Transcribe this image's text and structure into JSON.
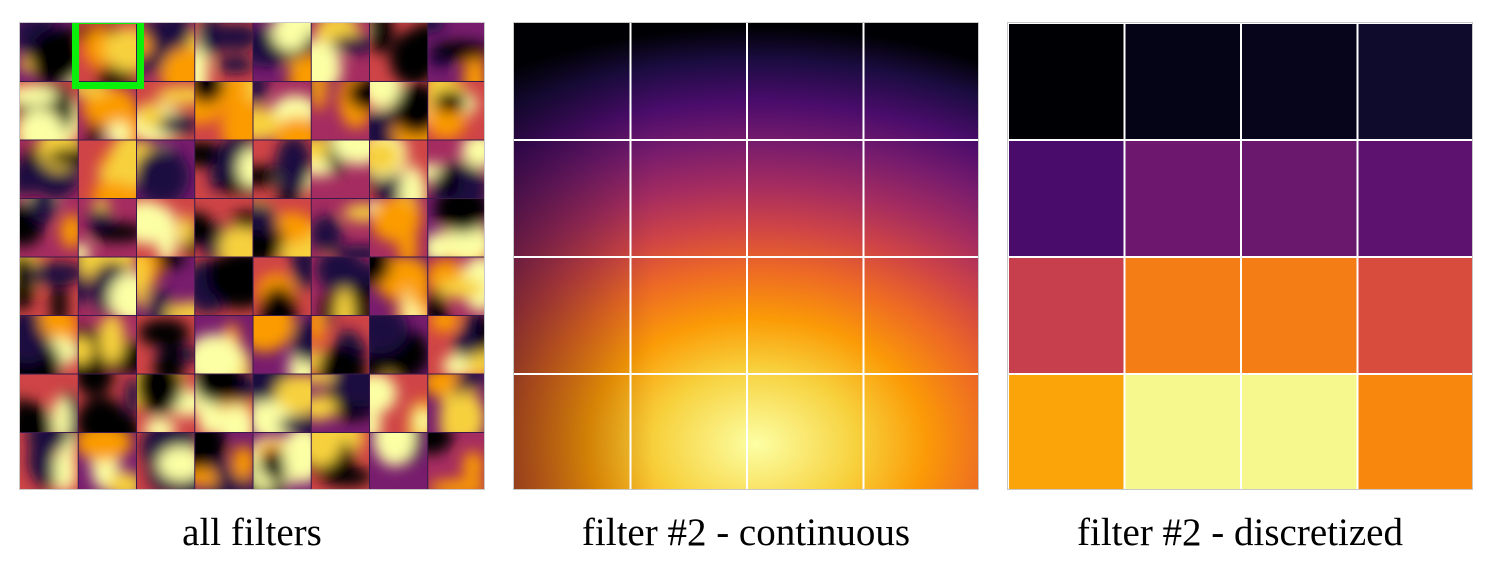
{
  "captions": {
    "all_filters": "all filters",
    "continuous": "filter #2 - continuous",
    "discretized": "filter #2 - discretized"
  },
  "colors": {
    "highlight": "#0af00a",
    "grid_line": "#ffffff",
    "colormap": "inferno"
  },
  "all_filters_grid": {
    "rows": 8,
    "cols": 8,
    "highlighted_filter_index": 2
  },
  "discretized_filter": {
    "rows": 4,
    "cols": 4,
    "cell_colors": [
      [
        "#000004",
        "#050316",
        "#07051c",
        "#0f0b2d"
      ],
      [
        "#4a0c6b",
        "#6d186e",
        "#6a176e",
        "#5c126e"
      ],
      [
        "#c73e4c",
        "#f57d15",
        "#f57d15",
        "#d84c3e"
      ],
      [
        "#fba40a",
        "#f6f88e",
        "#f6f88e",
        "#f8870e"
      ]
    ]
  }
}
